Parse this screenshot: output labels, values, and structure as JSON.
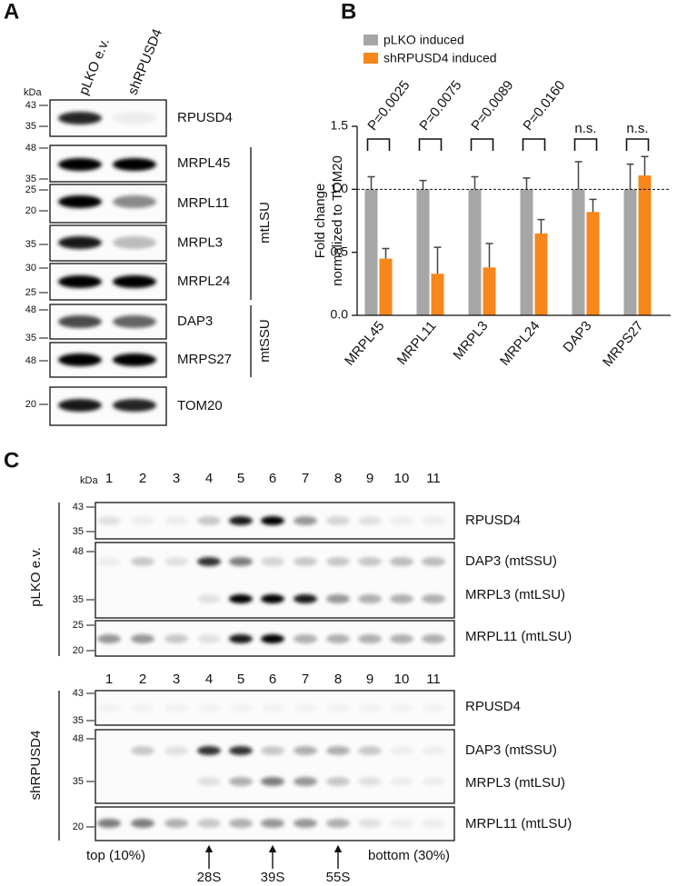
{
  "panel_a": {
    "label": "A",
    "kda": "kDa",
    "lanes": [
      "pLKO e.v.",
      "shRPUSD4"
    ],
    "blots": [
      {
        "name": "RPUSD4",
        "markers": [
          43,
          35
        ]
      },
      {
        "name": "MRPL45",
        "markers": [
          48,
          35
        ]
      },
      {
        "name": "MRPL11",
        "markers": [
          25,
          20
        ]
      },
      {
        "name": "MRPL3",
        "markers": [
          35
        ]
      },
      {
        "name": "MRPL24",
        "markers": [
          30,
          25
        ]
      },
      {
        "name": "DAP3",
        "markers": [
          48,
          35
        ]
      },
      {
        "name": "MRPS27",
        "markers": [
          48
        ]
      },
      {
        "name": "TOM20",
        "markers": [
          20
        ]
      }
    ],
    "groups": [
      "mtLSU",
      "mtSSU"
    ]
  },
  "chart_data": {
    "type": "bar",
    "panel_label": "B",
    "y_label": [
      "Fold change",
      "normalized to TOM20"
    ],
    "categories": [
      "MRPL45",
      "MRPL11",
      "MRPL3",
      "MRPL24",
      "DAP3",
      "MRPS27"
    ],
    "series": [
      {
        "name": "pLKO induced",
        "color": "#a6a6a6",
        "values": [
          1.0,
          1.0,
          1.0,
          1.0,
          1.0,
          1.0
        ],
        "errors": [
          0.1,
          0.07,
          0.1,
          0.09,
          0.22,
          0.2
        ]
      },
      {
        "name": "shRPUSD4 induced",
        "color": "#f7861b",
        "values": [
          0.45,
          0.33,
          0.38,
          0.65,
          0.82,
          1.11
        ],
        "errors": [
          0.08,
          0.21,
          0.19,
          0.11,
          0.1,
          0.15
        ]
      }
    ],
    "annotations": [
      "P=0.0025",
      "P=0.0075",
      "P=0.0089",
      "P=0.0160",
      "n.s.",
      "n.s."
    ],
    "reference_line": 1.0,
    "ylim": [
      0,
      1.5
    ],
    "yticks": [
      {
        "value": 0,
        "label": "0.0"
      },
      0.5,
      {
        "value": 1.0,
        "label": "1.0"
      },
      1.5
    ],
    "legend": "top-left"
  },
  "panel_c": {
    "label": "C",
    "kda": "kDa",
    "lanes": [
      1,
      2,
      3,
      4,
      5,
      6,
      7,
      8,
      9,
      10,
      11
    ],
    "groups": [
      {
        "name": "pLKO e.v.",
        "blots": [
          {
            "markers": [
              43,
              35
            ]
          },
          {
            "markers": [
              48,
              35
            ]
          },
          {
            "markers": [
              25,
              20
            ]
          }
        ],
        "proteins": [
          "RPUSD4",
          "DAP3 (mtSSU)",
          "MRPL3 (mtLSU)",
          "MRPL11 (mtLSU)"
        ]
      },
      {
        "name": "shRPUSD4",
        "blots": [
          {
            "markers": [
              43,
              35
            ]
          },
          {
            "markers": [
              48,
              35
            ]
          },
          {
            "markers": [
              20
            ]
          }
        ],
        "proteins": [
          "RPUSD4",
          "DAP3 (mtSSU)",
          "MRPL3 (mtLSU)",
          "MRPL11 (mtLSU)"
        ]
      }
    ],
    "fractions": {
      "top": "top (10%)",
      "bottom": "bottom (30%)"
    },
    "peaks": [
      "28S",
      "39S",
      "55S"
    ]
  }
}
